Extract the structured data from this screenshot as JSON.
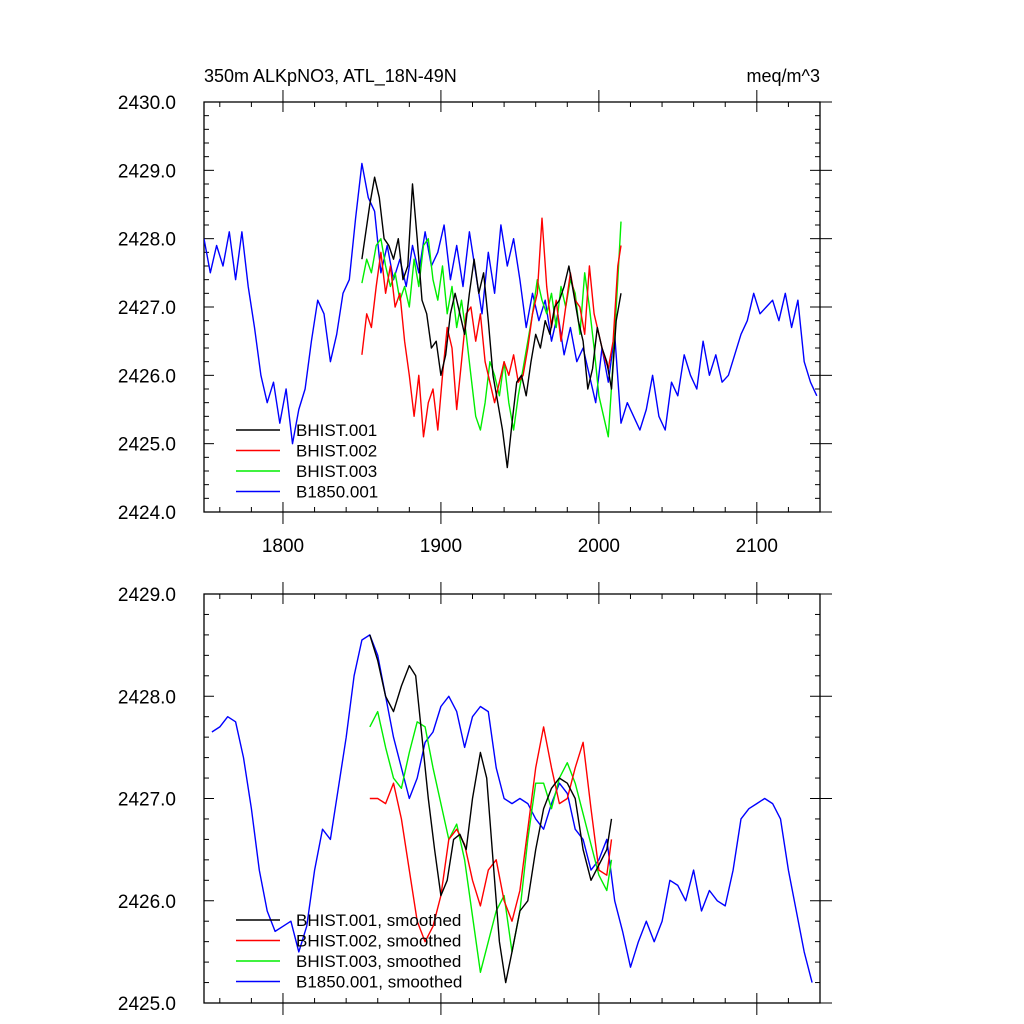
{
  "chart_data": [
    {
      "type": "line",
      "title": "350m ALKpNO3, ATL_18N-49N",
      "units": "meq/m^3",
      "xlabel": "",
      "ylabel": "",
      "xlim": [
        1750,
        2140
      ],
      "ylim": [
        2424.0,
        2430.0
      ],
      "x_ticks": [
        1800,
        1900,
        2000,
        2100
      ],
      "x_tick_labels": [
        "1800",
        "1900",
        "2000",
        "2100"
      ],
      "y_ticks": [
        2424.0,
        2425.0,
        2426.0,
        2427.0,
        2428.0,
        2429.0,
        2430.0
      ],
      "y_tick_labels": [
        "2424.0",
        "2425.0",
        "2426.0",
        "2427.0",
        "2428.0",
        "2429.0",
        "2430.0"
      ],
      "grid": false,
      "legend_position": "bottom-left",
      "series": [
        {
          "name": "BHIST.001",
          "color": "#000000",
          "x": [
            1850,
            1855,
            1858,
            1861,
            1864,
            1867,
            1870,
            1873,
            1876,
            1879,
            1882,
            1885,
            1888,
            1891,
            1894,
            1897,
            1900,
            1903,
            1906,
            1909,
            1912,
            1915,
            1918,
            1921,
            1924,
            1927,
            1930,
            1933,
            1936,
            1939,
            1942,
            1945,
            1948,
            1951,
            1954,
            1957,
            1960,
            1963,
            1966,
            1969,
            1972,
            1975,
            1978,
            1981,
            1984,
            1987,
            1990,
            1993,
            1996,
            1999,
            2002,
            2005,
            2008,
            2011,
            2014
          ],
          "y": [
            2427.7,
            2428.5,
            2428.9,
            2428.6,
            2428.0,
            2427.9,
            2427.7,
            2428.0,
            2427.4,
            2427.6,
            2428.8,
            2428.0,
            2427.1,
            2426.9,
            2426.4,
            2426.5,
            2426.0,
            2426.3,
            2426.9,
            2427.2,
            2426.9,
            2426.6,
            2427.2,
            2427.7,
            2427.2,
            2427.5,
            2426.8,
            2426.0,
            2425.6,
            2425.2,
            2424.65,
            2425.3,
            2425.9,
            2426.0,
            2425.7,
            2426.2,
            2426.6,
            2426.4,
            2426.8,
            2426.6,
            2427.0,
            2427.1,
            2427.3,
            2427.6,
            2427.2,
            2426.8,
            2426.5,
            2425.8,
            2426.1,
            2426.7,
            2426.4,
            2426.2,
            2425.8,
            2426.8,
            2427.2
          ]
        },
        {
          "name": "BHIST.002",
          "color": "#ff0000",
          "x": [
            1850,
            1853,
            1856,
            1859,
            1862,
            1865,
            1868,
            1871,
            1874,
            1877,
            1880,
            1883,
            1886,
            1889,
            1892,
            1895,
            1898,
            1901,
            1904,
            1907,
            1910,
            1913,
            1916,
            1919,
            1922,
            1925,
            1928,
            1931,
            1934,
            1937,
            1940,
            1943,
            1946,
            1949,
            1952,
            1955,
            1958,
            1961,
            1964,
            1967,
            1970,
            1973,
            1976,
            1979,
            1982,
            1985,
            1988,
            1991,
            1994,
            1997,
            2000,
            2003,
            2006,
            2009,
            2012,
            2014
          ],
          "y": [
            2426.3,
            2426.9,
            2426.7,
            2427.3,
            2427.8,
            2427.2,
            2427.6,
            2427.0,
            2427.2,
            2426.5,
            2426.0,
            2425.4,
            2426.0,
            2425.1,
            2425.6,
            2425.8,
            2425.2,
            2426.0,
            2426.7,
            2426.4,
            2425.5,
            2426.2,
            2426.9,
            2427.0,
            2426.5,
            2426.9,
            2426.2,
            2425.9,
            2425.6,
            2425.9,
            2426.2,
            2426.0,
            2426.3,
            2425.9,
            2426.0,
            2426.4,
            2426.9,
            2427.2,
            2428.3,
            2427.3,
            2426.7,
            2427.1,
            2426.5,
            2427.0,
            2427.5,
            2427.1,
            2427.0,
            2426.6,
            2427.6,
            2426.9,
            2426.6,
            2426.3,
            2426.1,
            2426.5,
            2427.6,
            2427.9
          ]
        },
        {
          "name": "BHIST.003",
          "color": "#00ee00",
          "x": [
            1850,
            1853,
            1856,
            1859,
            1862,
            1865,
            1868,
            1871,
            1874,
            1877,
            1880,
            1883,
            1886,
            1889,
            1892,
            1895,
            1898,
            1901,
            1904,
            1907,
            1910,
            1913,
            1916,
            1919,
            1922,
            1925,
            1928,
            1931,
            1934,
            1937,
            1940,
            1943,
            1946,
            1949,
            1952,
            1955,
            1958,
            1961,
            1964,
            1967,
            1970,
            1973,
            1976,
            1979,
            1982,
            1985,
            1988,
            1991,
            1994,
            1997,
            2000,
            2003,
            2006,
            2009,
            2012,
            2014
          ],
          "y": [
            2427.35,
            2427.7,
            2427.5,
            2427.9,
            2428.0,
            2427.6,
            2427.3,
            2427.5,
            2427.1,
            2427.3,
            2427.0,
            2427.7,
            2427.3,
            2427.9,
            2428.0,
            2427.4,
            2427.1,
            2427.6,
            2426.9,
            2427.3,
            2426.7,
            2427.1,
            2426.6,
            2426.0,
            2425.4,
            2425.2,
            2425.6,
            2426.2,
            2426.0,
            2425.7,
            2426.2,
            2425.6,
            2425.2,
            2425.7,
            2426.1,
            2426.5,
            2426.9,
            2427.4,
            2427.1,
            2426.9,
            2427.2,
            2426.7,
            2427.3,
            2427.0,
            2427.4,
            2427.2,
            2426.6,
            2427.5,
            2427.0,
            2426.4,
            2425.7,
            2425.4,
            2425.1,
            2426.2,
            2427.4,
            2428.25
          ]
        },
        {
          "name": "B1850.001",
          "color": "#0000ff",
          "x": [
            1750,
            1754,
            1758,
            1762,
            1766,
            1770,
            1774,
            1778,
            1782,
            1786,
            1790,
            1794,
            1798,
            1802,
            1806,
            1810,
            1814,
            1818,
            1822,
            1826,
            1830,
            1834,
            1838,
            1842,
            1846,
            1850,
            1854,
            1858,
            1862,
            1866,
            1870,
            1874,
            1878,
            1882,
            1886,
            1890,
            1894,
            1898,
            1902,
            1906,
            1910,
            1914,
            1918,
            1922,
            1926,
            1930,
            1934,
            1938,
            1942,
            1946,
            1950,
            1954,
            1958,
            1962,
            1966,
            1970,
            1974,
            1978,
            1982,
            1986,
            1990,
            1994,
            1998,
            2002,
            2006,
            2010,
            2014,
            2018,
            2022,
            2026,
            2030,
            2034,
            2038,
            2042,
            2046,
            2050,
            2054,
            2058,
            2062,
            2066,
            2070,
            2074,
            2078,
            2082,
            2086,
            2090,
            2094,
            2098,
            2102,
            2106,
            2110,
            2114,
            2118,
            2122,
            2126,
            2130,
            2134,
            2138
          ],
          "y": [
            2428.0,
            2427.5,
            2427.9,
            2427.6,
            2428.1,
            2427.4,
            2428.1,
            2427.3,
            2426.7,
            2426.0,
            2425.6,
            2425.9,
            2425.3,
            2425.8,
            2425.0,
            2425.5,
            2425.8,
            2426.5,
            2427.1,
            2426.9,
            2426.2,
            2426.6,
            2427.2,
            2427.4,
            2428.3,
            2429.1,
            2428.6,
            2428.4,
            2427.5,
            2427.9,
            2427.4,
            2427.7,
            2427.3,
            2427.9,
            2427.5,
            2428.1,
            2427.6,
            2427.8,
            2428.2,
            2427.4,
            2427.9,
            2427.3,
            2428.1,
            2427.5,
            2426.9,
            2427.8,
            2427.2,
            2428.2,
            2427.6,
            2428.0,
            2427.4,
            2426.7,
            2427.2,
            2426.8,
            2427.1,
            2426.5,
            2426.9,
            2426.3,
            2426.7,
            2426.2,
            2426.4,
            2426.0,
            2425.6,
            2426.4,
            2425.9,
            2426.6,
            2425.3,
            2425.6,
            2425.4,
            2425.2,
            2425.5,
            2426.0,
            2425.4,
            2425.2,
            2425.9,
            2425.7,
            2426.3,
            2426.0,
            2425.8,
            2426.5,
            2426.0,
            2426.3,
            2425.9,
            2426.0,
            2426.3,
            2426.6,
            2426.8,
            2427.2,
            2426.9,
            2427.0,
            2427.1,
            2426.8,
            2427.2,
            2426.7,
            2427.1,
            2426.2,
            2425.9,
            2425.7
          ]
        }
      ]
    },
    {
      "type": "line",
      "title": "",
      "xlabel": "",
      "ylabel": "",
      "xlim": [
        1750,
        2140
      ],
      "ylim": [
        2425.0,
        2429.0
      ],
      "x_ticks": [
        1800,
        1900,
        2000,
        2100
      ],
      "x_tick_labels": [],
      "y_ticks": [
        2425.0,
        2426.0,
        2427.0,
        2428.0,
        2429.0
      ],
      "y_tick_labels": [
        "2425.0",
        "2426.0",
        "2427.0",
        "2428.0",
        "2429.0"
      ],
      "grid": false,
      "legend_position": "bottom-left",
      "series": [
        {
          "name": "BHIST.001, smoothed",
          "color": "#000000",
          "x": [
            1855,
            1860,
            1865,
            1870,
            1875,
            1880,
            1884,
            1888,
            1892,
            1896,
            1900,
            1904,
            1908,
            1912,
            1916,
            1920,
            1925,
            1929,
            1933,
            1937,
            1941,
            1945,
            1950,
            1955,
            1960,
            1965,
            1970,
            1975,
            1980,
            1985,
            1990,
            1995,
            2000,
            2005,
            2008
          ],
          "y": [
            2428.6,
            2428.35,
            2428.0,
            2427.85,
            2428.1,
            2428.3,
            2428.2,
            2427.6,
            2427.0,
            2426.5,
            2426.05,
            2426.2,
            2426.6,
            2426.65,
            2426.5,
            2427.0,
            2427.45,
            2427.2,
            2426.4,
            2425.6,
            2425.2,
            2425.5,
            2425.9,
            2426.0,
            2426.5,
            2426.9,
            2427.1,
            2427.2,
            2427.15,
            2427.0,
            2426.5,
            2426.2,
            2426.35,
            2426.5,
            2426.8
          ]
        },
        {
          "name": "BHIST.002, smoothed",
          "color": "#ff0000",
          "x": [
            1855,
            1860,
            1865,
            1870,
            1875,
            1880,
            1885,
            1890,
            1895,
            1900,
            1905,
            1910,
            1915,
            1920,
            1925,
            1930,
            1935,
            1940,
            1945,
            1950,
            1955,
            1960,
            1965,
            1970,
            1975,
            1980,
            1985,
            1990,
            1995,
            2000,
            2005,
            2008
          ],
          "y": [
            2427.0,
            2427.0,
            2426.95,
            2427.15,
            2426.8,
            2426.3,
            2425.8,
            2425.6,
            2425.75,
            2426.05,
            2426.6,
            2426.7,
            2426.55,
            2426.2,
            2425.95,
            2426.3,
            2426.4,
            2426.0,
            2425.8,
            2426.1,
            2426.7,
            2427.3,
            2427.7,
            2427.3,
            2426.95,
            2427.0,
            2427.3,
            2427.55,
            2426.9,
            2426.3,
            2426.25,
            2426.6
          ]
        },
        {
          "name": "BHIST.003, smoothed",
          "color": "#00ee00",
          "x": [
            1855,
            1860,
            1865,
            1870,
            1875,
            1880,
            1885,
            1890,
            1895,
            1900,
            1905,
            1910,
            1915,
            1920,
            1925,
            1930,
            1935,
            1940,
            1945,
            1950,
            1955,
            1960,
            1965,
            1970,
            1975,
            1980,
            1985,
            1990,
            1995,
            2000,
            2005,
            2008
          ],
          "y": [
            2427.7,
            2427.85,
            2427.5,
            2427.2,
            2427.1,
            2427.45,
            2427.75,
            2427.7,
            2427.3,
            2426.95,
            2426.6,
            2426.75,
            2426.4,
            2425.85,
            2425.3,
            2425.6,
            2425.9,
            2426.05,
            2425.5,
            2425.9,
            2426.6,
            2427.15,
            2427.15,
            2426.9,
            2427.2,
            2427.35,
            2427.15,
            2426.85,
            2426.55,
            2426.25,
            2426.1,
            2426.4
          ]
        },
        {
          "name": "B1850.001, smoothed",
          "color": "#0000ff",
          "x": [
            1755,
            1760,
            1765,
            1770,
            1775,
            1780,
            1785,
            1790,
            1795,
            1800,
            1805,
            1810,
            1815,
            1820,
            1825,
            1830,
            1835,
            1840,
            1845,
            1850,
            1855,
            1860,
            1865,
            1870,
            1875,
            1880,
            1885,
            1890,
            1895,
            1900,
            1905,
            1910,
            1915,
            1920,
            1925,
            1930,
            1935,
            1940,
            1945,
            1950,
            1955,
            1960,
            1965,
            1970,
            1975,
            1980,
            1985,
            1990,
            1995,
            2000,
            2005,
            2010,
            2015,
            2020,
            2025,
            2030,
            2035,
            2040,
            2045,
            2050,
            2055,
            2060,
            2065,
            2070,
            2075,
            2080,
            2085,
            2090,
            2095,
            2100,
            2105,
            2110,
            2115,
            2120,
            2125,
            2130,
            2135
          ],
          "y": [
            2427.65,
            2427.7,
            2427.8,
            2427.75,
            2427.4,
            2426.9,
            2426.3,
            2425.9,
            2425.7,
            2425.75,
            2425.8,
            2425.5,
            2425.75,
            2426.3,
            2426.7,
            2426.6,
            2427.1,
            2427.6,
            2428.2,
            2428.55,
            2428.6,
            2428.4,
            2428.0,
            2427.6,
            2427.3,
            2427.0,
            2427.2,
            2427.55,
            2427.65,
            2427.9,
            2428.0,
            2427.85,
            2427.5,
            2427.8,
            2427.9,
            2427.85,
            2427.3,
            2427.0,
            2426.95,
            2427.0,
            2426.95,
            2426.8,
            2426.7,
            2426.95,
            2427.15,
            2427.05,
            2426.7,
            2426.6,
            2426.3,
            2426.4,
            2426.6,
            2426.0,
            2425.7,
            2425.35,
            2425.6,
            2425.8,
            2425.6,
            2425.8,
            2426.2,
            2426.15,
            2426.0,
            2426.3,
            2425.9,
            2426.1,
            2426.0,
            2425.95,
            2426.3,
            2426.8,
            2426.9,
            2426.95,
            2427.0,
            2426.95,
            2426.8,
            2426.3,
            2425.9,
            2425.5,
            2425.2
          ]
        }
      ]
    }
  ]
}
